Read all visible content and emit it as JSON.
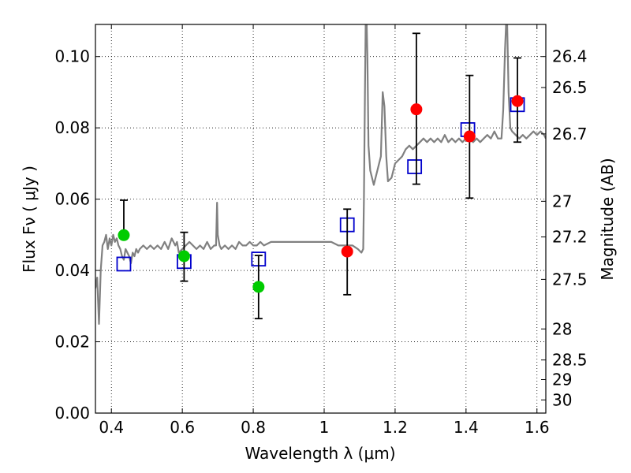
{
  "chart_data": {
    "type": "scatter",
    "xlabel": "Wavelength  λ (μm)",
    "ylabel_left": "Flux  Fν  ( μJy )",
    "ylabel_right": "Magnitude (AB)",
    "xlim": [
      0.355,
      1.625
    ],
    "ylim": [
      0.0,
      0.109
    ],
    "x_ticks": [
      0.4,
      0.6,
      0.8,
      1.0,
      1.2,
      1.4,
      1.6
    ],
    "x_tick_labels": [
      "0.4",
      "0.6",
      "0.8",
      "1",
      "1.2",
      "1.4",
      "1.6"
    ],
    "y_ticks": [
      0.0,
      0.02,
      0.04,
      0.06,
      0.08,
      0.1
    ],
    "y_tick_labels": [
      "0.00",
      "0.02",
      "0.04",
      "0.06",
      "0.08",
      "0.10"
    ],
    "right_ticks": [
      {
        "label": "26.4",
        "flux": 0.1
      },
      {
        "label": "26.5",
        "flux": 0.0913
      },
      {
        "label": "26.7",
        "flux": 0.0783
      },
      {
        "label": "27",
        "flux": 0.0594
      },
      {
        "label": "27.2",
        "flux": 0.0494
      },
      {
        "label": "27.5",
        "flux": 0.0375
      },
      {
        "label": "28",
        "flux": 0.0236
      },
      {
        "label": "28.5",
        "flux": 0.0149
      },
      {
        "label": "29",
        "flux": 0.0094
      },
      {
        "label": "30",
        "flux": 0.0037
      }
    ],
    "grid": true,
    "series": [
      {
        "kind": "line",
        "color": "#808080",
        "points": [
          [
            0.355,
            0.035
          ],
          [
            0.36,
            0.038
          ],
          [
            0.365,
            0.025
          ],
          [
            0.37,
            0.04
          ],
          [
            0.375,
            0.047
          ],
          [
            0.38,
            0.048
          ],
          [
            0.385,
            0.05
          ],
          [
            0.39,
            0.046
          ],
          [
            0.395,
            0.049
          ],
          [
            0.4,
            0.047
          ],
          [
            0.405,
            0.05
          ],
          [
            0.41,
            0.048
          ],
          [
            0.415,
            0.049
          ],
          [
            0.42,
            0.047
          ],
          [
            0.425,
            0.046
          ],
          [
            0.43,
            0.044
          ],
          [
            0.435,
            0.043
          ],
          [
            0.44,
            0.046
          ],
          [
            0.445,
            0.045
          ],
          [
            0.45,
            0.044
          ],
          [
            0.455,
            0.042
          ],
          [
            0.46,
            0.045
          ],
          [
            0.465,
            0.044
          ],
          [
            0.47,
            0.046
          ],
          [
            0.475,
            0.045
          ],
          [
            0.48,
            0.046
          ],
          [
            0.49,
            0.047
          ],
          [
            0.5,
            0.046
          ],
          [
            0.51,
            0.047
          ],
          [
            0.52,
            0.046
          ],
          [
            0.53,
            0.047
          ],
          [
            0.54,
            0.046
          ],
          [
            0.55,
            0.048
          ],
          [
            0.56,
            0.046
          ],
          [
            0.57,
            0.049
          ],
          [
            0.58,
            0.047
          ],
          [
            0.585,
            0.048
          ],
          [
            0.59,
            0.045
          ],
          [
            0.6,
            0.046
          ],
          [
            0.61,
            0.047
          ],
          [
            0.62,
            0.048
          ],
          [
            0.63,
            0.047
          ],
          [
            0.64,
            0.046
          ],
          [
            0.65,
            0.047
          ],
          [
            0.66,
            0.046
          ],
          [
            0.67,
            0.048
          ],
          [
            0.68,
            0.046
          ],
          [
            0.69,
            0.047
          ],
          [
            0.695,
            0.047
          ],
          [
            0.698,
            0.059
          ],
          [
            0.7,
            0.05
          ],
          [
            0.705,
            0.047
          ],
          [
            0.71,
            0.046
          ],
          [
            0.72,
            0.047
          ],
          [
            0.73,
            0.046
          ],
          [
            0.74,
            0.047
          ],
          [
            0.75,
            0.046
          ],
          [
            0.76,
            0.048
          ],
          [
            0.77,
            0.047
          ],
          [
            0.78,
            0.047
          ],
          [
            0.79,
            0.048
          ],
          [
            0.8,
            0.047
          ],
          [
            0.81,
            0.047
          ],
          [
            0.82,
            0.048
          ],
          [
            0.83,
            0.047
          ],
          [
            0.85,
            0.048
          ],
          [
            0.87,
            0.048
          ],
          [
            0.9,
            0.048
          ],
          [
            0.93,
            0.048
          ],
          [
            0.96,
            0.048
          ],
          [
            1.0,
            0.048
          ],
          [
            1.02,
            0.048
          ],
          [
            1.04,
            0.047
          ],
          [
            1.06,
            0.047
          ],
          [
            1.08,
            0.047
          ],
          [
            1.095,
            0.046
          ],
          [
            1.105,
            0.045
          ],
          [
            1.11,
            0.046
          ],
          [
            1.112,
            0.06
          ],
          [
            1.115,
            0.09
          ],
          [
            1.117,
            0.109
          ],
          [
            1.12,
            0.109
          ],
          [
            1.122,
            0.1
          ],
          [
            1.125,
            0.075
          ],
          [
            1.13,
            0.068
          ],
          [
            1.14,
            0.064
          ],
          [
            1.15,
            0.068
          ],
          [
            1.16,
            0.072
          ],
          [
            1.165,
            0.09
          ],
          [
            1.17,
            0.086
          ],
          [
            1.175,
            0.072
          ],
          [
            1.18,
            0.065
          ],
          [
            1.19,
            0.066
          ],
          [
            1.2,
            0.07
          ],
          [
            1.21,
            0.071
          ],
          [
            1.22,
            0.072
          ],
          [
            1.23,
            0.074
          ],
          [
            1.24,
            0.075
          ],
          [
            1.25,
            0.074
          ],
          [
            1.26,
            0.075
          ],
          [
            1.27,
            0.076
          ],
          [
            1.28,
            0.077
          ],
          [
            1.29,
            0.076
          ],
          [
            1.3,
            0.077
          ],
          [
            1.31,
            0.076
          ],
          [
            1.32,
            0.077
          ],
          [
            1.33,
            0.076
          ],
          [
            1.34,
            0.078
          ],
          [
            1.35,
            0.076
          ],
          [
            1.36,
            0.077
          ],
          [
            1.37,
            0.076
          ],
          [
            1.38,
            0.077
          ],
          [
            1.39,
            0.076
          ],
          [
            1.4,
            0.077
          ],
          [
            1.41,
            0.077
          ],
          [
            1.42,
            0.076
          ],
          [
            1.43,
            0.077
          ],
          [
            1.44,
            0.076
          ],
          [
            1.45,
            0.077
          ],
          [
            1.46,
            0.078
          ],
          [
            1.47,
            0.077
          ],
          [
            1.48,
            0.079
          ],
          [
            1.49,
            0.077
          ],
          [
            1.5,
            0.077
          ],
          [
            1.505,
            0.085
          ],
          [
            1.51,
            0.102
          ],
          [
            1.513,
            0.109
          ],
          [
            1.516,
            0.109
          ],
          [
            1.52,
            0.09
          ],
          [
            1.525,
            0.08
          ],
          [
            1.53,
            0.079
          ],
          [
            1.54,
            0.078
          ],
          [
            1.55,
            0.077
          ],
          [
            1.56,
            0.078
          ],
          [
            1.57,
            0.077
          ],
          [
            1.58,
            0.078
          ],
          [
            1.59,
            0.079
          ],
          [
            1.6,
            0.078
          ],
          [
            1.61,
            0.079
          ],
          [
            1.62,
            0.078
          ],
          [
            1.625,
            0.077
          ]
        ]
      },
      {
        "kind": "observed",
        "color": "#00cc00",
        "points": [
          {
            "x": 0.435,
            "y": 0.0499,
            "err_lo": null,
            "err_hi": 0.0597
          },
          {
            "x": 0.605,
            "y": 0.044,
            "err_lo": 0.037,
            "err_hi": 0.0507
          },
          {
            "x": 0.815,
            "y": 0.0354,
            "err_lo": 0.0265,
            "err_hi": 0.0442
          }
        ]
      },
      {
        "kind": "observed",
        "color": "#ff0000",
        "points": [
          {
            "x": 1.065,
            "y": 0.0453,
            "err_lo": 0.0332,
            "err_hi": 0.0572
          },
          {
            "x": 1.26,
            "y": 0.0852,
            "err_lo": 0.0642,
            "err_hi": 0.1065
          },
          {
            "x": 1.41,
            "y": 0.0776,
            "err_lo": 0.0603,
            "err_hi": 0.0947
          },
          {
            "x": 1.545,
            "y": 0.0875,
            "err_lo": 0.076,
            "err_hi": 0.0996
          }
        ]
      },
      {
        "kind": "model",
        "color": "#0000cc",
        "points": [
          {
            "x": 0.435,
            "y": 0.0418
          },
          {
            "x": 0.605,
            "y": 0.0425
          },
          {
            "x": 0.815,
            "y": 0.0432
          },
          {
            "x": 1.065,
            "y": 0.0528
          },
          {
            "x": 1.255,
            "y": 0.0691
          },
          {
            "x": 1.405,
            "y": 0.0795
          },
          {
            "x": 1.545,
            "y": 0.0865
          }
        ]
      }
    ]
  }
}
